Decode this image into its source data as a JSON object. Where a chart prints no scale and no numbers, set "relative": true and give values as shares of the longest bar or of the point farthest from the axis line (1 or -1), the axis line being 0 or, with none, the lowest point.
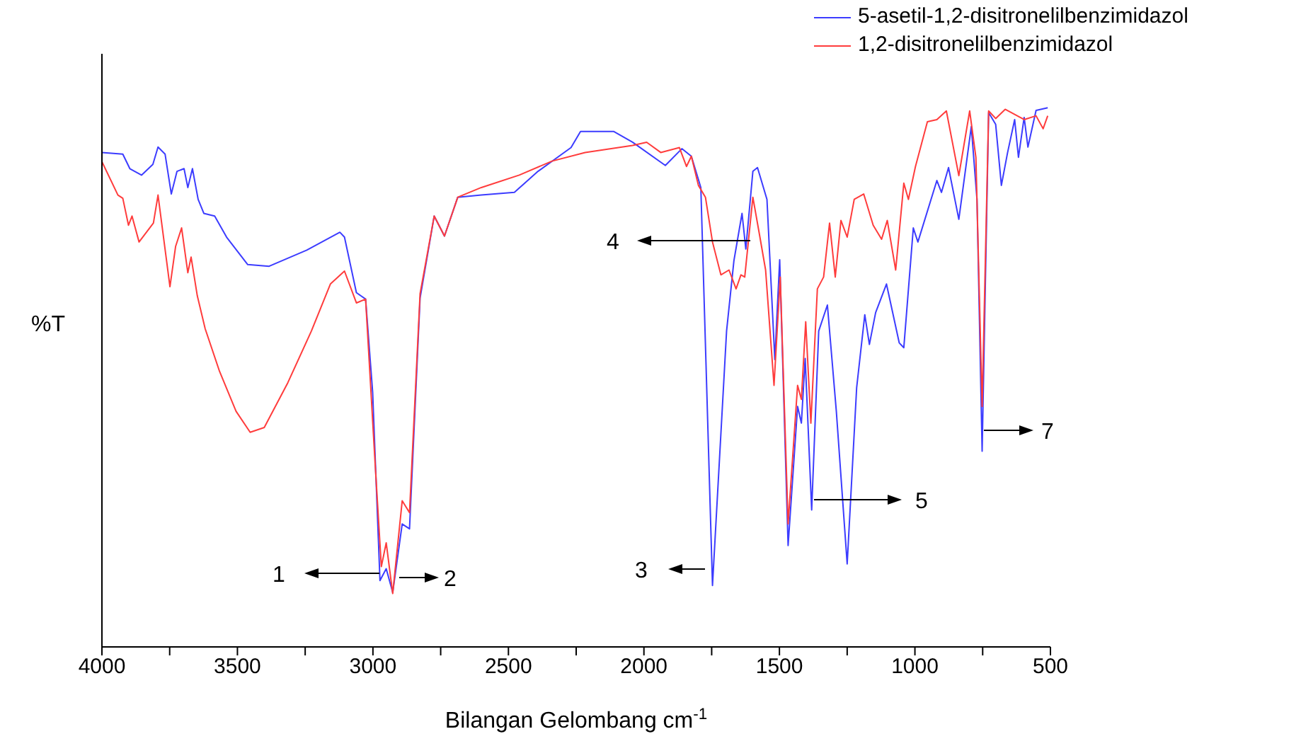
{
  "chart_data": {
    "type": "line",
    "relative": true,
    "xlabel": "Bilangan Gelombang cm$^{-1}$",
    "ylabel": "%T",
    "legend": "top right",
    "xlim": [
      4000,
      500
    ],
    "xticks": [
      4000,
      {
        "value": 3750,
        "label": null
      },
      3500,
      {
        "value": 3250,
        "label": null
      },
      3000,
      {
        "value": 2750,
        "label": null
      },
      2500,
      {
        "value": 2250,
        "label": null
      },
      2000,
      {
        "value": 1750,
        "label": null
      },
      1500,
      {
        "value": 1250,
        "label": null
      },
      1000,
      {
        "value": 750,
        "label": null
      },
      500
    ],
    "annotations": [
      "1",
      "2",
      "3",
      "4",
      "5",
      "7"
    ],
    "series": [
      {
        "name": "5-asetil-1,2-disitronelilbenzimidazol",
        "color": "#3c3cff",
        "x": [
          4000,
          3923,
          3897,
          3854,
          3812,
          3793,
          3767,
          3744,
          3723,
          3697,
          3683,
          3666,
          3645,
          3624,
          3584,
          3540,
          3462,
          3383,
          3244,
          3122,
          3105,
          3061,
          3027,
          3001,
          2974,
          2951,
          2927,
          2892,
          2865,
          2826,
          2774,
          2736,
          2687,
          2600,
          2478,
          2391,
          2269,
          2234,
          2112,
          2042,
          1921,
          1860,
          1825,
          1790,
          1747,
          1695,
          1668,
          1638,
          1624,
          1598,
          1581,
          1546,
          1517,
          1499,
          1468,
          1433,
          1419,
          1405,
          1381,
          1355,
          1323,
          1290,
          1250,
          1215,
          1185,
          1168,
          1145,
          1105,
          1058,
          1041,
          1006,
          989,
          919,
          902,
          876,
          838,
          792,
          771,
          752,
          728,
          702,
          681,
          658,
          632,
          618,
          597,
          583,
          553,
          510
        ],
        "values": [
          0.917,
          0.914,
          0.887,
          0.875,
          0.895,
          0.927,
          0.914,
          0.84,
          0.882,
          0.887,
          0.852,
          0.887,
          0.83,
          0.804,
          0.799,
          0.76,
          0.709,
          0.706,
          0.736,
          0.769,
          0.76,
          0.657,
          0.645,
          0.472,
          0.123,
          0.145,
          0.101,
          0.228,
          0.219,
          0.647,
          0.799,
          0.762,
          0.834,
          0.838,
          0.843,
          0.882,
          0.926,
          0.956,
          0.956,
          0.936,
          0.893,
          0.924,
          0.91,
          0.852,
          0.114,
          0.586,
          0.716,
          0.804,
          0.738,
          0.882,
          0.889,
          0.83,
          0.533,
          0.718,
          0.188,
          0.446,
          0.415,
          0.535,
          0.254,
          0.586,
          0.634,
          0.437,
          0.154,
          0.481,
          0.616,
          0.561,
          0.62,
          0.673,
          0.564,
          0.555,
          0.777,
          0.751,
          0.865,
          0.843,
          0.889,
          0.793,
          0.965,
          0.83,
          0.363,
          0.991,
          0.969,
          0.856,
          0.917,
          0.978,
          0.908,
          0.982,
          0.927,
          0.995,
          1
        ]
      },
      {
        "name": "1,2-disitronelilbenzimidazol",
        "color": "#ff3c3c",
        "x": [
          4000,
          3941,
          3923,
          3902,
          3889,
          3863,
          3810,
          3793,
          3749,
          3728,
          3706,
          3683,
          3671,
          3648,
          3619,
          3566,
          3505,
          3453,
          3401,
          3314,
          3227,
          3157,
          3105,
          3061,
          3027,
          2992,
          2969,
          2951,
          2927,
          2892,
          2865,
          2826,
          2774,
          2736,
          2687,
          2600,
          2460,
          2339,
          2217,
          2042,
          1990,
          1938,
          1869,
          1843,
          1825,
          1799,
          1773,
          1747,
          1716,
          1686,
          1660,
          1642,
          1628,
          1598,
          1572,
          1551,
          1520,
          1497,
          1468,
          1433,
          1419,
          1403,
          1384,
          1360,
          1337,
          1315,
          1294,
          1273,
          1250,
          1224,
          1189,
          1154,
          1123,
          1102,
          1071,
          1041,
          1024,
          998,
          954,
          919,
          884,
          838,
          798,
          775,
          752,
          728,
          702,
          667,
          597,
          553,
          527,
          510
        ],
        "values": [
          0.9,
          0.838,
          0.832,
          0.782,
          0.799,
          0.751,
          0.786,
          0.838,
          0.668,
          0.743,
          0.777,
          0.694,
          0.723,
          0.651,
          0.59,
          0.511,
          0.437,
          0.398,
          0.407,
          0.49,
          0.586,
          0.673,
          0.697,
          0.638,
          0.645,
          0.341,
          0.149,
          0.193,
          0.099,
          0.271,
          0.249,
          0.655,
          0.799,
          0.762,
          0.834,
          0.852,
          0.875,
          0.901,
          0.917,
          0.93,
          0.936,
          0.917,
          0.926,
          0.891,
          0.91,
          0.856,
          0.834,
          0.751,
          0.69,
          0.699,
          0.664,
          0.69,
          0.686,
          0.834,
          0.76,
          0.699,
          0.485,
          0.686,
          0.228,
          0.485,
          0.459,
          0.603,
          0.415,
          0.664,
          0.686,
          0.786,
          0.686,
          0.791,
          0.76,
          0.83,
          0.84,
          0.782,
          0.756,
          0.791,
          0.699,
          0.86,
          0.83,
          0.891,
          0.974,
          0.978,
          0.994,
          0.874,
          0.994,
          0.908,
          0.446,
          0.994,
          0.98,
          0.997,
          0.978,
          0.985,
          0.961,
          0.985
        ]
      }
    ]
  }
}
